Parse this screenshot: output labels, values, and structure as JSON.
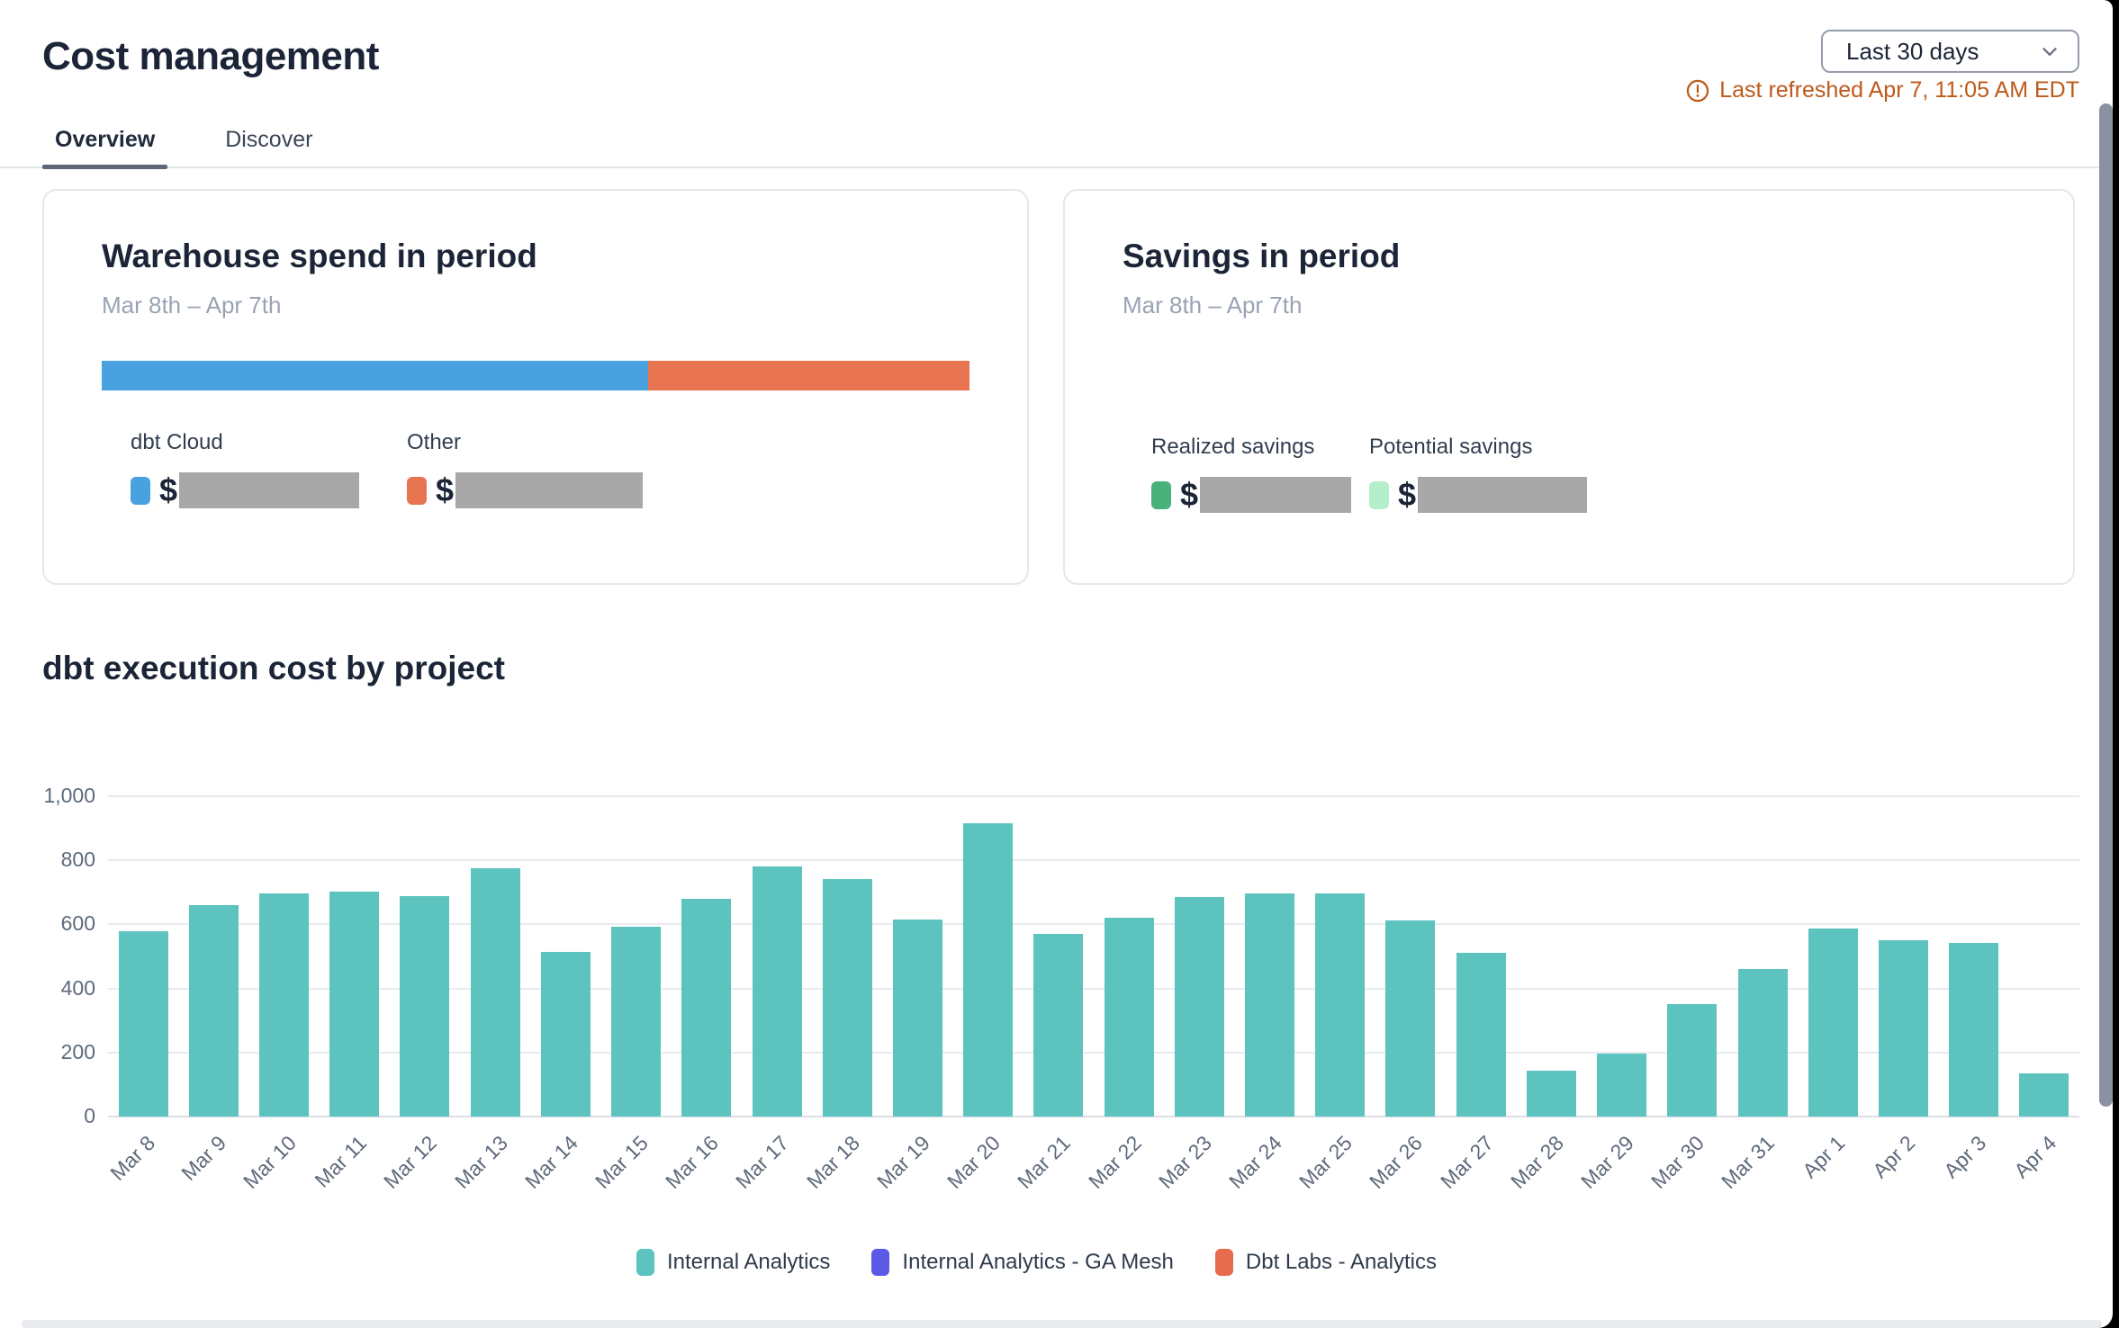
{
  "header": {
    "title": "Cost management",
    "date_range": {
      "value": "Last 30 days"
    },
    "last_refreshed": "Last refreshed Apr 7, 11:05 AM EDT"
  },
  "tabs": {
    "items": [
      {
        "label": "Overview"
      },
      {
        "label": "Discover"
      }
    ],
    "active": "Overview"
  },
  "cards": {
    "warehouse_spend": {
      "title": "Warehouse spend in period",
      "period": "Mar 8th – Apr 7th",
      "stacked_bar": {
        "segments": [
          {
            "label": "dbt Cloud",
            "color": "#4aa1e0",
            "pct": 63
          },
          {
            "label": "Other",
            "color": "#e87350",
            "pct": 37
          }
        ]
      },
      "legend": [
        {
          "label": "dbt Cloud",
          "currency": "$",
          "color": "#4aa1e0",
          "value_redacted": true
        },
        {
          "label": "Other",
          "currency": "$",
          "color": "#e87350",
          "value_redacted": true
        }
      ]
    },
    "savings": {
      "title": "Savings in period",
      "period": "Mar 8th – Apr 7th",
      "legend": [
        {
          "label": "Realized savings",
          "currency": "$",
          "color": "#4bb17c",
          "value_redacted": true
        },
        {
          "label": "Potential savings",
          "currency": "$",
          "color": "#b4eecb",
          "value_redacted": true
        }
      ]
    }
  },
  "chart_data": {
    "type": "bar",
    "title": "dbt execution cost by project",
    "categories": [
      "Mar 8",
      "Mar 9",
      "Mar 10",
      "Mar 11",
      "Mar 12",
      "Mar 13",
      "Mar 14",
      "Mar 15",
      "Mar 16",
      "Mar 17",
      "Mar 18",
      "Mar 19",
      "Mar 20",
      "Mar 21",
      "Mar 22",
      "Mar 23",
      "Mar 24",
      "Mar 25",
      "Mar 26",
      "Mar 27",
      "Mar 28",
      "Mar 29",
      "Mar 30",
      "Mar 31",
      "Apr 1",
      "Apr 2",
      "Apr 3",
      "Apr 4"
    ],
    "series": [
      {
        "name": "Internal Analytics",
        "color": "#5cc3bf",
        "values": [
          580,
          660,
          698,
          703,
          688,
          775,
          515,
          592,
          680,
          780,
          742,
          615,
          915,
          570,
          620,
          685,
          698,
          696,
          612,
          510,
          143,
          196,
          350,
          462,
          587,
          551,
          542,
          136
        ]
      },
      {
        "name": "Internal Analytics - GA Mesh",
        "color": "#5b5ae6",
        "values": []
      },
      {
        "name": "Dbt Labs - Analytics",
        "color": "#e76c4e",
        "values": []
      }
    ],
    "xlabel": "",
    "ylabel": "",
    "ylim": [
      0,
      1000
    ],
    "yticks": [
      "1,000",
      "800",
      "600",
      "400",
      "200",
      "0"
    ],
    "grid": true,
    "legend_position": "bottom"
  },
  "colors": {
    "bar_teal": "#5cc3bf",
    "warning": "#bc5a1a",
    "redaction_gray": "#a8a8a8"
  }
}
